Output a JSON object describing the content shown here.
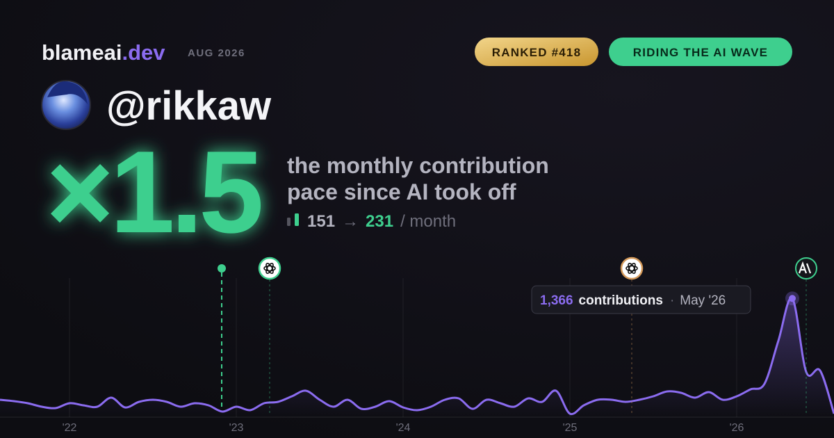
{
  "header": {
    "brand": "blameai",
    "brand_tld": ".dev",
    "period": "AUG 2026",
    "rank_badge": "RANKED #418",
    "wave_badge": "RIDING THE AI WAVE"
  },
  "profile": {
    "handle": "@rikkaw"
  },
  "stats": {
    "multiplier": "×1.5",
    "caption_line1": "the monthly contribution",
    "caption_line2": "pace since AI took off",
    "before": "151",
    "arrow": "→",
    "after": "231",
    "unit": "/ month"
  },
  "chart_data": {
    "type": "line",
    "categories": [
      null,
      null,
      null,
      null,
      null,
      "'22",
      null,
      null,
      null,
      null,
      null,
      null,
      null,
      null,
      null,
      null,
      null,
      "'23",
      null,
      null,
      null,
      null,
      null,
      null,
      null,
      null,
      null,
      null,
      null,
      "'24",
      null,
      null,
      null,
      null,
      null,
      null,
      null,
      null,
      null,
      null,
      null,
      "'25",
      null,
      null,
      null,
      null,
      null,
      null,
      null,
      null,
      null,
      null,
      null,
      "'26",
      null,
      null,
      null,
      null,
      null,
      null,
      null
    ],
    "series": [
      {
        "name": "contributions",
        "color": "#8b6cf0",
        "values": [
          200,
          184,
          160,
          120,
          104,
          160,
          136,
          120,
          224,
          112,
          176,
          200,
          176,
          120,
          160,
          136,
          64,
          120,
          80,
          160,
          176,
          240,
          304,
          200,
          120,
          200,
          96,
          120,
          184,
          112,
          80,
          120,
          200,
          216,
          96,
          200,
          160,
          120,
          216,
          176,
          304,
          40,
          136,
          200,
          200,
          176,
          200,
          240,
          296,
          280,
          224,
          288,
          200,
          240,
          320,
          384,
          880,
          1366,
          520,
          536,
          40
        ]
      }
    ],
    "ylim": [
      0,
      1600
    ],
    "tooltip": {
      "value": "1,366",
      "text": "contributions",
      "date": "May '26"
    }
  }
}
